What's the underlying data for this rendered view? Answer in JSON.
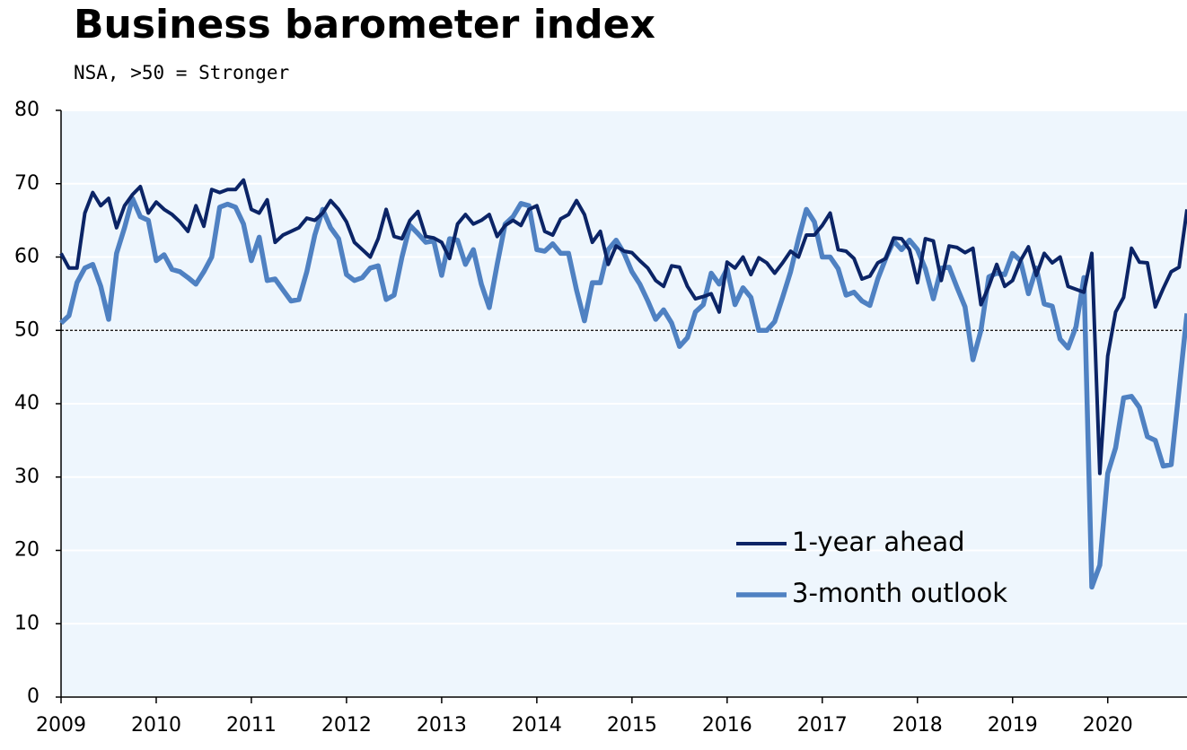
{
  "chart_data": {
    "type": "line",
    "title": "Business barometer index",
    "subtitle": "NSA, >50 = Stronger",
    "x": [
      2009,
      2009.083,
      2009.167,
      2009.25,
      2009.333,
      2009.417,
      2009.5,
      2009.583,
      2009.667,
      2009.75,
      2009.833,
      2009.917,
      2010,
      2010.083,
      2010.167,
      2010.25,
      2010.333,
      2010.417,
      2010.5,
      2010.583,
      2010.667,
      2010.75,
      2010.833,
      2010.917,
      2011,
      2011.083,
      2011.167,
      2011.25,
      2011.333,
      2011.417,
      2011.5,
      2011.583,
      2011.667,
      2011.75,
      2011.833,
      2011.917,
      2012,
      2012.083,
      2012.167,
      2012.25,
      2012.333,
      2012.417,
      2012.5,
      2012.583,
      2012.667,
      2012.75,
      2012.833,
      2012.917,
      2013,
      2013.083,
      2013.167,
      2013.25,
      2013.333,
      2013.417,
      2013.5,
      2013.583,
      2013.667,
      2013.75,
      2013.833,
      2013.917,
      2014,
      2014.083,
      2014.167,
      2014.25,
      2014.333,
      2014.417,
      2014.5,
      2014.583,
      2014.667,
      2014.75,
      2014.833,
      2014.917,
      2015,
      2015.083,
      2015.167,
      2015.25,
      2015.333,
      2015.417,
      2015.5,
      2015.583,
      2015.667,
      2015.75,
      2015.833,
      2015.917,
      2016,
      2016.083,
      2016.167,
      2016.25,
      2016.333,
      2016.417,
      2016.5,
      2016.583,
      2016.667,
      2016.75,
      2016.833,
      2016.917,
      2017,
      2017.083,
      2017.167,
      2017.25,
      2017.333,
      2017.417,
      2017.5,
      2017.583,
      2017.667,
      2017.75,
      2017.833,
      2017.917,
      2018,
      2018.083,
      2018.167,
      2018.25,
      2018.333,
      2018.417,
      2018.5,
      2018.583,
      2018.667,
      2018.75,
      2018.833,
      2018.917,
      2019,
      2019.083,
      2019.167,
      2019.25,
      2019.333,
      2019.417,
      2019.5,
      2019.583,
      2019.667,
      2019.75,
      2019.833,
      2019.917,
      2020,
      2020.083,
      2020.167,
      2020.25,
      2020.333,
      2020.417,
      2020.5,
      2020.583,
      2020.667,
      2020.75,
      2020.833
    ],
    "series": [
      {
        "name": "1-year ahead",
        "color": "#0b2466",
        "values": [
          60.5,
          58.5,
          58.5,
          66,
          68.8,
          67,
          68,
          64,
          67,
          68.5,
          69.6,
          66,
          67.5,
          66.5,
          65.8,
          64.8,
          63.5,
          67,
          64.2,
          69.2,
          68.8,
          69.2,
          69.2,
          70.5,
          66.5,
          66,
          67.8,
          62,
          63,
          63.5,
          64,
          65.3,
          65,
          66,
          67.7,
          66.5,
          64.8,
          62,
          61,
          60,
          62.5,
          66.5,
          62.8,
          62.5,
          65,
          66.2,
          62.8,
          62.6,
          62,
          59.8,
          64.5,
          65.8,
          64.5,
          65,
          65.8,
          62.8,
          64.3,
          65,
          64.3,
          66.5,
          67,
          63.5,
          63,
          65.2,
          65.8,
          67.7,
          65.8,
          62,
          63.5,
          59,
          61.5,
          60.8,
          60.6,
          59.5,
          58.5,
          56.8,
          56,
          58.8,
          58.6,
          56,
          54.3,
          54.6,
          55,
          52.5,
          59.3,
          58.5,
          60,
          57.6,
          59.9,
          59.2,
          57.8,
          59.2,
          60.8,
          60,
          63,
          63,
          64.3,
          66,
          61,
          60.8,
          59.8,
          57,
          57.4,
          59.2,
          59.8,
          62.6,
          62.5,
          61,
          56.5,
          62.5,
          62.2,
          56.8,
          61.5,
          61.3,
          60.6,
          61.2,
          53.5,
          56,
          59,
          56,
          56.8,
          59.5,
          61.4,
          57.5,
          60.5,
          59.2,
          60,
          56,
          55.6,
          55.2,
          60.5,
          30.5,
          46.5,
          52.5,
          54.5,
          61.2,
          59.3,
          59.2,
          53.2,
          55.7,
          58,
          58.6,
          66.5
        ]
      },
      {
        "name": "3-month outlook",
        "color": "#4f81c2",
        "values": [
          51,
          52,
          56.5,
          58.5,
          59,
          56,
          51.5,
          60.5,
          64,
          68,
          65.5,
          65,
          59.5,
          60.3,
          58.3,
          58,
          57.2,
          56.3,
          58,
          60,
          66.8,
          67.2,
          66.8,
          64.5,
          59.5,
          62.7,
          56.8,
          57,
          55.5,
          54,
          54.2,
          58,
          63,
          66.5,
          64,
          62.5,
          57.6,
          56.8,
          57.2,
          58.5,
          58.8,
          54.2,
          54.8,
          60,
          64.3,
          63.2,
          62,
          62.2,
          57.5,
          62.5,
          62.3,
          59,
          61,
          56.3,
          53.1,
          59,
          64.5,
          65.5,
          67.3,
          67,
          61,
          60.8,
          61.8,
          60.5,
          60.5,
          55.5,
          51.3,
          56.5,
          56.5,
          61,
          62.3,
          60.5,
          58,
          56.3,
          54,
          51.5,
          52.8,
          51,
          47.8,
          49,
          52.5,
          53.5,
          57.8,
          56.3,
          58.4,
          53.5,
          55.8,
          54.5,
          50,
          50,
          51.2,
          54.5,
          58,
          62.5,
          66.5,
          64.8,
          60,
          60,
          58.4,
          54.8,
          55.2,
          54,
          53.4,
          57,
          59.8,
          62.2,
          61,
          62.3,
          61,
          58.4,
          54.3,
          58.5,
          58.6,
          55.8,
          53.2,
          46,
          50,
          57.3,
          57.8,
          57.6,
          60.5,
          59.5,
          55,
          58.5,
          53.6,
          53.3,
          48.8,
          47.6,
          50.5,
          57.2,
          15,
          18,
          30.5,
          34,
          40.8,
          41,
          39.5,
          35.5,
          35,
          31.5,
          31.7,
          42,
          52.3
        ]
      }
    ],
    "xlim": [
      2009,
      2020.833
    ],
    "xticks": [
      2009,
      2010,
      2011,
      2012,
      2013,
      2014,
      2015,
      2016,
      2017,
      2018,
      2019,
      2020
    ],
    "ylim": [
      0,
      80
    ],
    "yticks": [
      0,
      10,
      20,
      30,
      40,
      50,
      60,
      70,
      80
    ],
    "reference_line": 50,
    "grid": true,
    "legend": "lower right"
  }
}
